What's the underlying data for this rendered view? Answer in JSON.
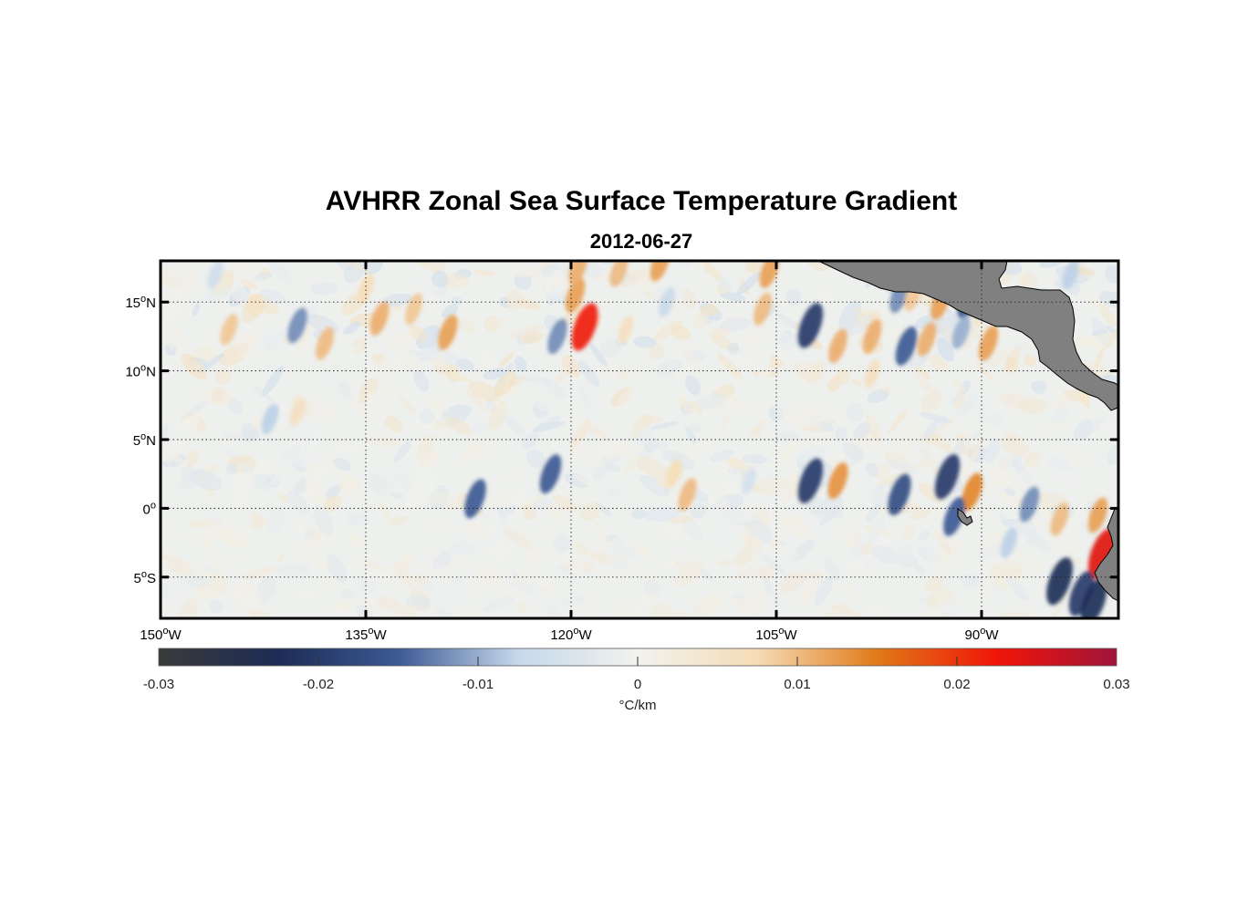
{
  "chart_data": {
    "type": "heatmap",
    "title": "AVHRR Zonal Sea Surface Temperature Gradient",
    "subtitle": "2012-06-27",
    "xlim": [
      -150,
      -80
    ],
    "ylim": [
      -8,
      18
    ],
    "x_ticks": [
      {
        "value": -150,
        "label": "150",
        "sup": "o",
        "suffix": "W"
      },
      {
        "value": -135,
        "label": "135",
        "sup": "o",
        "suffix": "W"
      },
      {
        "value": -120,
        "label": "120",
        "sup": "o",
        "suffix": "W"
      },
      {
        "value": -105,
        "label": "105",
        "sup": "o",
        "suffix": "W"
      },
      {
        "value": -90,
        "label": "90",
        "sup": "o",
        "suffix": "W"
      }
    ],
    "y_ticks": [
      {
        "value": 15,
        "label": "15",
        "sup": "o",
        "suffix": "N"
      },
      {
        "value": 10,
        "label": "10",
        "sup": "o",
        "suffix": "N"
      },
      {
        "value": 5,
        "label": "5",
        "sup": "o",
        "suffix": "N"
      },
      {
        "value": 0,
        "label": "0",
        "sup": "o",
        "suffix": ""
      },
      {
        "value": -5,
        "label": "5",
        "sup": "o",
        "suffix": "S"
      }
    ],
    "colorbar": {
      "min": -0.03,
      "max": 0.03,
      "ticks": [
        -0.03,
        -0.02,
        -0.01,
        0,
        0.01,
        0.02,
        0.03
      ],
      "tick_labels": [
        "-0.03",
        "-0.02",
        "-0.01",
        "0",
        "0.01",
        "0.02",
        "0.03"
      ],
      "units": "°C/km",
      "stops": [
        "#3a3a3a",
        "#1d2c55",
        "#3c5a94",
        "#c6d8ec",
        "#f2f2ee",
        "#f5dcb5",
        "#e07a18",
        "#f01508",
        "#a0143a"
      ]
    },
    "features": [
      {
        "lon": -119.0,
        "lat": 13.2,
        "value": 0.022
      },
      {
        "lon": -119.7,
        "lat": 15.5,
        "value": 0.012
      },
      {
        "lon": -129.0,
        "lat": 12.8,
        "value": 0.012
      },
      {
        "lon": -134.0,
        "lat": 13.8,
        "value": 0.011
      },
      {
        "lon": -131.5,
        "lat": 14.5,
        "value": 0.009
      },
      {
        "lon": -121.0,
        "lat": 12.5,
        "value": -0.012
      },
      {
        "lon": -145.0,
        "lat": 13.0,
        "value": 0.009
      },
      {
        "lon": -140.0,
        "lat": 13.3,
        "value": -0.012
      },
      {
        "lon": -138.0,
        "lat": 12.0,
        "value": 0.01
      },
      {
        "lon": -119.5,
        "lat": 17.5,
        "value": 0.011
      },
      {
        "lon": -116.5,
        "lat": 17.3,
        "value": 0.01
      },
      {
        "lon": -113.5,
        "lat": 17.8,
        "value": 0.012
      },
      {
        "lon": -105.5,
        "lat": 17.3,
        "value": 0.012
      },
      {
        "lon": -106.0,
        "lat": 14.5,
        "value": 0.01
      },
      {
        "lon": -102.5,
        "lat": 13.3,
        "value": -0.02
      },
      {
        "lon": -100.5,
        "lat": 11.8,
        "value": 0.011
      },
      {
        "lon": -98.0,
        "lat": 12.5,
        "value": 0.011
      },
      {
        "lon": -95.5,
        "lat": 11.8,
        "value": -0.015
      },
      {
        "lon": -94.0,
        "lat": 12.3,
        "value": 0.011
      },
      {
        "lon": -93.0,
        "lat": 15.0,
        "value": 0.012
      },
      {
        "lon": -91.0,
        "lat": 15.2,
        "value": -0.015
      },
      {
        "lon": -89.5,
        "lat": 15.5,
        "value": 0.012
      },
      {
        "lon": -91.5,
        "lat": 12.8,
        "value": -0.01
      },
      {
        "lon": -89.5,
        "lat": 12.0,
        "value": 0.012
      },
      {
        "lon": -96.0,
        "lat": 15.5,
        "value": -0.012
      },
      {
        "lon": -95.0,
        "lat": 15.5,
        "value": 0.009
      },
      {
        "lon": -84.5,
        "lat": 13.0,
        "value": -0.013
      },
      {
        "lon": -83.5,
        "lat": 17.0,
        "value": -0.008
      },
      {
        "lon": -102.5,
        "lat": 2.0,
        "value": -0.02
      },
      {
        "lon": -100.5,
        "lat": 2.0,
        "value": 0.013
      },
      {
        "lon": -96.0,
        "lat": 1.0,
        "value": -0.017
      },
      {
        "lon": -92.5,
        "lat": 2.3,
        "value": -0.02
      },
      {
        "lon": -90.7,
        "lat": 1.2,
        "value": 0.014
      },
      {
        "lon": -92.0,
        "lat": -0.6,
        "value": -0.015
      },
      {
        "lon": -86.5,
        "lat": 0.3,
        "value": -0.012
      },
      {
        "lon": -84.3,
        "lat": -0.8,
        "value": 0.01
      },
      {
        "lon": -81.5,
        "lat": -0.5,
        "value": 0.012
      },
      {
        "lon": -81.2,
        "lat": -3.3,
        "value": 0.024
      },
      {
        "lon": -84.3,
        "lat": -5.3,
        "value": -0.022
      },
      {
        "lon": -82.7,
        "lat": -6.2,
        "value": -0.02
      },
      {
        "lon": -81.8,
        "lat": -6.8,
        "value": -0.022
      },
      {
        "lon": -88.0,
        "lat": -2.5,
        "value": -0.008
      },
      {
        "lon": -121.5,
        "lat": 2.5,
        "value": -0.015
      },
      {
        "lon": -111.5,
        "lat": 1.0,
        "value": 0.01
      },
      {
        "lon": -112.5,
        "lat": 2.5,
        "value": 0.007
      },
      {
        "lon": -127.0,
        "lat": 0.7,
        "value": -0.015
      },
      {
        "lon": -107.0,
        "lat": 2.0,
        "value": -0.005
      },
      {
        "lon": -142.0,
        "lat": 6.5,
        "value": -0.008
      },
      {
        "lon": -140.0,
        "lat": 7.0,
        "value": 0.006
      },
      {
        "lon": -98.0,
        "lat": 9.8,
        "value": 0.006
      },
      {
        "lon": -135.0,
        "lat": 16.0,
        "value": 0.007
      },
      {
        "lon": -146.0,
        "lat": 17.0,
        "value": -0.006
      },
      {
        "lon": -113.0,
        "lat": 15.0,
        "value": -0.007
      },
      {
        "lon": -116.0,
        "lat": 13.0,
        "value": 0.006
      }
    ]
  }
}
